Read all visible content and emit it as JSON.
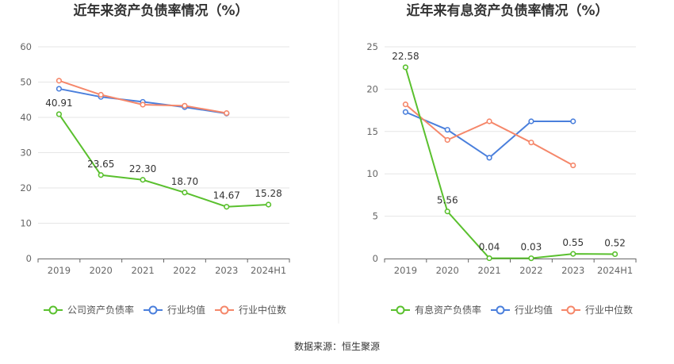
{
  "source": "数据来源：恒生聚源",
  "colors": {
    "company": "#5ac02e",
    "industry_avg": "#4a7fdc",
    "industry_median": "#f5876a",
    "grid": "#e6e6e6",
    "axis": "#666666"
  },
  "chart_data": [
    {
      "type": "line",
      "title": "近年来资产负债率情况（%）",
      "categories": [
        "2019",
        "2020",
        "2021",
        "2022",
        "2023",
        "2024H1"
      ],
      "ylim": [
        0,
        60
      ],
      "yticks": [
        0,
        10,
        20,
        30,
        40,
        50,
        60
      ],
      "grid": true,
      "legend_position": "bottom",
      "series": [
        {
          "name": "公司资产负债率",
          "color_key": "company",
          "labels": true,
          "values": [
            40.91,
            23.65,
            22.3,
            18.7,
            14.67,
            15.28
          ],
          "value_labels": [
            "40.91",
            "23.65",
            "22.30",
            "18.70",
            "14.67",
            "15.28"
          ]
        },
        {
          "name": "行业均值",
          "color_key": "industry_avg",
          "labels": false,
          "values": [
            48.1,
            45.8,
            44.4,
            42.9,
            41.1,
            null
          ]
        },
        {
          "name": "行业中位数",
          "color_key": "industry_median",
          "labels": false,
          "values": [
            50.4,
            46.4,
            43.6,
            43.3,
            41.2,
            null
          ]
        }
      ]
    },
    {
      "type": "line",
      "title": "近年来有息资产负债率情况（%）",
      "categories": [
        "2019",
        "2020",
        "2021",
        "2022",
        "2023",
        "2024H1"
      ],
      "ylim": [
        0,
        25
      ],
      "yticks": [
        0,
        5,
        10,
        15,
        20,
        25
      ],
      "grid": true,
      "legend_position": "bottom",
      "series": [
        {
          "name": "有息资产负债率",
          "color_key": "company",
          "labels": true,
          "values": [
            22.58,
            5.56,
            0.04,
            0.03,
            0.55,
            0.52
          ],
          "value_labels": [
            "22.58",
            "5.56",
            "0.04",
            "0.03",
            "0.55",
            "0.52"
          ]
        },
        {
          "name": "行业均值",
          "color_key": "industry_avg",
          "labels": false,
          "values": [
            17.3,
            15.2,
            11.9,
            16.2,
            16.2,
            null
          ]
        },
        {
          "name": "行业中位数",
          "color_key": "industry_median",
          "labels": false,
          "values": [
            18.2,
            14.0,
            16.2,
            13.7,
            11.0,
            null
          ]
        }
      ]
    }
  ]
}
